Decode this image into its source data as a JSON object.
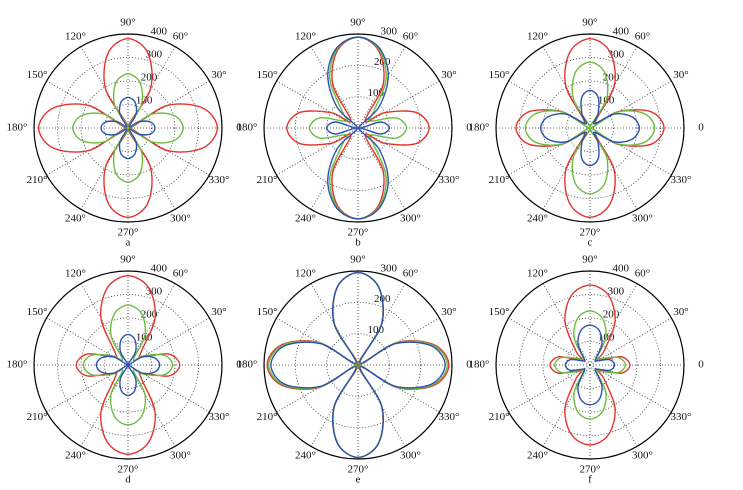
{
  "chart_data": [
    {
      "type": "polar",
      "caption": "a",
      "rlim": [
        0,
        400
      ],
      "rticks": [
        100,
        200,
        300,
        400
      ],
      "thetaticks": [
        0,
        {
          "value": 30,
          "label": "30°"
        },
        {
          "value": 60,
          "label": "60°"
        },
        {
          "value": 90,
          "label": "90°"
        },
        {
          "value": 120,
          "label": "120°"
        },
        {
          "value": 150,
          "label": "150°"
        },
        {
          "value": 180,
          "label": "180°"
        },
        {
          "value": 210,
          "label": "210°"
        },
        {
          "value": 240,
          "label": "240°"
        },
        {
          "value": 270,
          "label": "270°"
        },
        {
          "value": 300,
          "label": "300°"
        },
        {
          "value": 330,
          "label": "330°"
        }
      ],
      "theta": [
        0,
        15,
        30,
        45,
        60,
        75,
        90,
        105,
        120,
        135,
        150,
        165,
        180,
        195,
        210,
        225,
        240,
        255,
        270,
        285,
        300,
        315,
        330,
        345
      ],
      "series": [
        {
          "color": "#e3342c",
          "values": [
            380,
            329,
            190,
            0,
            190,
            329,
            380,
            329,
            190,
            0,
            190,
            329,
            380,
            329,
            190,
            0,
            190,
            329,
            380,
            329,
            190,
            0,
            190,
            329
          ]
        },
        {
          "color": "#6cbd3e",
          "values": [
            235,
            204,
            119,
            3,
            114,
            199,
            230,
            199,
            114,
            3,
            119,
            204,
            235,
            204,
            119,
            3,
            114,
            199,
            230,
            199,
            114,
            3,
            119,
            204
          ]
        },
        {
          "color": "#2a52b0",
          "values": [
            115,
            99,
            54,
            8,
            69,
            114,
            130,
            114,
            69,
            8,
            54,
            99,
            115,
            99,
            54,
            8,
            69,
            114,
            130,
            114,
            69,
            8,
            54,
            99
          ]
        }
      ]
    },
    {
      "type": "polar",
      "caption": "b",
      "rlim": [
        0,
        300
      ],
      "rticks": [
        100,
        200,
        300
      ],
      "thetaticks": [
        0,
        {
          "value": 30,
          "label": "30°"
        },
        {
          "value": 60,
          "label": "60°"
        },
        {
          "value": 90,
          "label": "90°"
        },
        {
          "value": 120,
          "label": "120°"
        },
        {
          "value": 150,
          "label": "150°"
        },
        {
          "value": 180,
          "label": "180°"
        },
        {
          "value": 210,
          "label": "210°"
        },
        {
          "value": 240,
          "label": "240°"
        },
        {
          "value": 270,
          "label": "270°"
        },
        {
          "value": 300,
          "label": "300°"
        },
        {
          "value": 330,
          "label": "330°"
        }
      ],
      "theta": [
        0,
        15,
        30,
        45,
        60,
        75,
        90,
        105,
        120,
        135,
        150,
        165,
        180,
        195,
        210,
        225,
        240,
        255,
        270,
        285,
        300,
        315,
        330,
        345
      ],
      "series": [
        {
          "color": "#e3342c",
          "values": [
            227,
            192,
            98,
            32,
            161,
            255,
            290,
            255,
            161,
            32,
            98,
            192,
            227,
            192,
            98,
            32,
            161,
            255,
            290,
            255,
            161,
            32,
            98,
            192
          ]
        },
        {
          "color": "#6cbd3e",
          "values": [
            155,
            125,
            44,
            68,
            179,
            260,
            290,
            260,
            179,
            68,
            44,
            125,
            155,
            125,
            44,
            68,
            179,
            260,
            290,
            260,
            179,
            68,
            44,
            125
          ]
        },
        {
          "color": "#2a52b0",
          "values": [
            100,
            74,
            3,
            95,
            193,
            264,
            290,
            264,
            193,
            95,
            3,
            74,
            100,
            74,
            3,
            95,
            193,
            264,
            290,
            264,
            193,
            95,
            3,
            74
          ]
        }
      ]
    },
    {
      "type": "polar",
      "caption": "c",
      "rlim": [
        0,
        400
      ],
      "rticks": [
        100,
        200,
        300,
        400
      ],
      "thetaticks": [
        0,
        {
          "value": 30,
          "label": "30°"
        },
        {
          "value": 60,
          "label": "60°"
        },
        {
          "value": 90,
          "label": "90°"
        },
        {
          "value": 120,
          "label": "120°"
        },
        {
          "value": 150,
          "label": "150°"
        },
        {
          "value": 180,
          "label": "180°"
        },
        {
          "value": 210,
          "label": "210°"
        },
        {
          "value": 240,
          "label": "240°"
        },
        {
          "value": 270,
          "label": "270°"
        },
        {
          "value": 300,
          "label": "300°"
        },
        {
          "value": 330,
          "label": "330°"
        }
      ],
      "theta": [
        0,
        15,
        30,
        45,
        60,
        75,
        90,
        105,
        120,
        135,
        150,
        165,
        180,
        195,
        210,
        225,
        240,
        255,
        270,
        285,
        300,
        315,
        330,
        345
      ],
      "series": [
        {
          "color": "#e3342c",
          "values": [
            315,
            268,
            141,
            33,
            206,
            333,
            380,
            333,
            206,
            33,
            141,
            268,
            315,
            268,
            141,
            33,
            206,
            333,
            380,
            333,
            206,
            33,
            141,
            268
          ]
        },
        {
          "color": "#6cbd3e",
          "values": [
            275,
            238,
            136,
            3,
            141,
            243,
            280,
            243,
            141,
            3,
            136,
            238,
            275,
            238,
            136,
            3,
            141,
            243,
            280,
            243,
            141,
            3,
            136,
            238
          ]
        },
        {
          "color": "#2a52b0",
          "values": [
            210,
            185,
            118,
            25,
            68,
            135,
            160,
            135,
            68,
            25,
            118,
            185,
            210,
            185,
            118,
            25,
            68,
            135,
            160,
            135,
            68,
            25,
            118,
            185
          ]
        }
      ]
    },
    {
      "type": "polar",
      "caption": "d",
      "rlim": [
        0,
        400
      ],
      "rticks": [
        100,
        200,
        300,
        400
      ],
      "thetaticks": [
        0,
        {
          "value": 30,
          "label": "30°"
        },
        {
          "value": 60,
          "label": "60°"
        },
        {
          "value": 90,
          "label": "90°"
        },
        {
          "value": 120,
          "label": "120°"
        },
        {
          "value": 150,
          "label": "150°"
        },
        {
          "value": 180,
          "label": "180°"
        },
        {
          "value": 210,
          "label": "210°"
        },
        {
          "value": 240,
          "label": "240°"
        },
        {
          "value": 270,
          "label": "270°"
        },
        {
          "value": 300,
          "label": "300°"
        },
        {
          "value": 330,
          "label": "330°"
        }
      ],
      "theta": [
        0,
        15,
        30,
        45,
        60,
        75,
        90,
        105,
        120,
        135,
        150,
        165,
        180,
        195,
        210,
        225,
        240,
        255,
        270,
        285,
        300,
        315,
        330,
        345
      ],
      "series": [
        {
          "color": "#e3342c",
          "values": [
            220,
            180,
            70,
            80,
            230,
            340,
            380,
            340,
            230,
            80,
            70,
            180,
            220,
            180,
            70,
            80,
            230,
            340,
            380,
            340,
            230,
            80,
            70,
            180
          ]
        },
        {
          "color": "#6cbd3e",
          "values": [
            190,
            160,
            79,
            33,
            144,
            225,
            255,
            225,
            144,
            33,
            79,
            160,
            190,
            160,
            79,
            33,
            144,
            225,
            255,
            225,
            144,
            33,
            79,
            160
          ]
        },
        {
          "color": "#2a52b0",
          "values": [
            135,
            117,
            69,
            3,
            64,
            112,
            130,
            112,
            64,
            3,
            69,
            117,
            135,
            117,
            69,
            3,
            64,
            112,
            130,
            112,
            64,
            3,
            69,
            117
          ]
        }
      ]
    },
    {
      "type": "polar",
      "caption": "e",
      "rlim": [
        0,
        300
      ],
      "rticks": [
        100,
        200,
        300
      ],
      "thetaticks": [
        0,
        {
          "value": 30,
          "label": "30°"
        },
        {
          "value": 60,
          "label": "60°"
        },
        {
          "value": 90,
          "label": "90°"
        },
        {
          "value": 120,
          "label": "120°"
        },
        {
          "value": 150,
          "label": "150°"
        },
        {
          "value": 180,
          "label": "180°"
        },
        {
          "value": 210,
          "label": "210°"
        },
        {
          "value": 240,
          "label": "240°"
        },
        {
          "value": 270,
          "label": "270°"
        },
        {
          "value": 300,
          "label": "300°"
        },
        {
          "value": 330,
          "label": "330°"
        }
      ],
      "theta": [
        0,
        15,
        30,
        45,
        60,
        75,
        90,
        105,
        120,
        135,
        150,
        165,
        180,
        195,
        210,
        225,
        240,
        255,
        270,
        285,
        300,
        315,
        330,
        345
      ],
      "series": [
        {
          "color": "#e3342c",
          "values": [
            290,
            251,
            144,
            3,
            149,
            256,
            295,
            256,
            149,
            3,
            144,
            251,
            290,
            251,
            144,
            3,
            149,
            256,
            295,
            256,
            149,
            3,
            144,
            251
          ]
        },
        {
          "color": "#6cbd3e",
          "values": [
            285,
            246,
            140,
            5,
            150,
            256,
            295,
            256,
            150,
            5,
            140,
            246,
            285,
            246,
            140,
            5,
            150,
            256,
            295,
            256,
            150,
            5,
            140,
            246
          ]
        },
        {
          "color": "#2a52b0",
          "values": [
            278,
            240,
            135,
            9,
            152,
            257,
            295,
            257,
            152,
            9,
            135,
            240,
            278,
            240,
            135,
            9,
            152,
            257,
            295,
            257,
            152,
            9,
            135,
            240
          ]
        }
      ]
    },
    {
      "type": "polar",
      "caption": "f",
      "rlim": [
        0,
        400
      ],
      "rticks": [
        100,
        200,
        300,
        400
      ],
      "thetaticks": [
        0,
        {
          "value": 30,
          "label": "30°"
        },
        {
          "value": 60,
          "label": "60°"
        },
        {
          "value": 90,
          "label": "90°"
        },
        {
          "value": 120,
          "label": "120°"
        },
        {
          "value": 150,
          "label": "150°"
        },
        {
          "value": 180,
          "label": "180°"
        },
        {
          "value": 210,
          "label": "210°"
        },
        {
          "value": 240,
          "label": "240°"
        },
        {
          "value": 270,
          "label": "270°"
        },
        {
          "value": 300,
          "label": "300°"
        },
        {
          "value": 330,
          "label": "330°"
        }
      ],
      "theta": [
        0,
        15,
        30,
        45,
        60,
        75,
        90,
        105,
        120,
        135,
        150,
        165,
        180,
        195,
        210,
        225,
        240,
        255,
        270,
        285,
        300,
        315,
        330,
        345
      ],
      "series": [
        {
          "color": "#e3342c",
          "values": [
            170,
            136,
            43,
            85,
            213,
            306,
            340,
            306,
            213,
            85,
            43,
            136,
            170,
            136,
            43,
            85,
            213,
            306,
            340,
            306,
            213,
            85,
            43,
            136
          ]
        },
        {
          "color": "#6cbd3e",
          "values": [
            150,
            125,
            55,
            40,
            135,
            205,
            230,
            205,
            135,
            40,
            55,
            125,
            150,
            125,
            55,
            40,
            135,
            205,
            230,
            205,
            135,
            40,
            55,
            125
          ]
        },
        {
          "color": "#2a52b0",
          "values": [
            105,
            87,
            36,
            33,
            101,
            152,
            170,
            152,
            101,
            33,
            36,
            87,
            105,
            87,
            36,
            33,
            101,
            152,
            170,
            152,
            101,
            33,
            36,
            87
          ]
        }
      ]
    }
  ]
}
